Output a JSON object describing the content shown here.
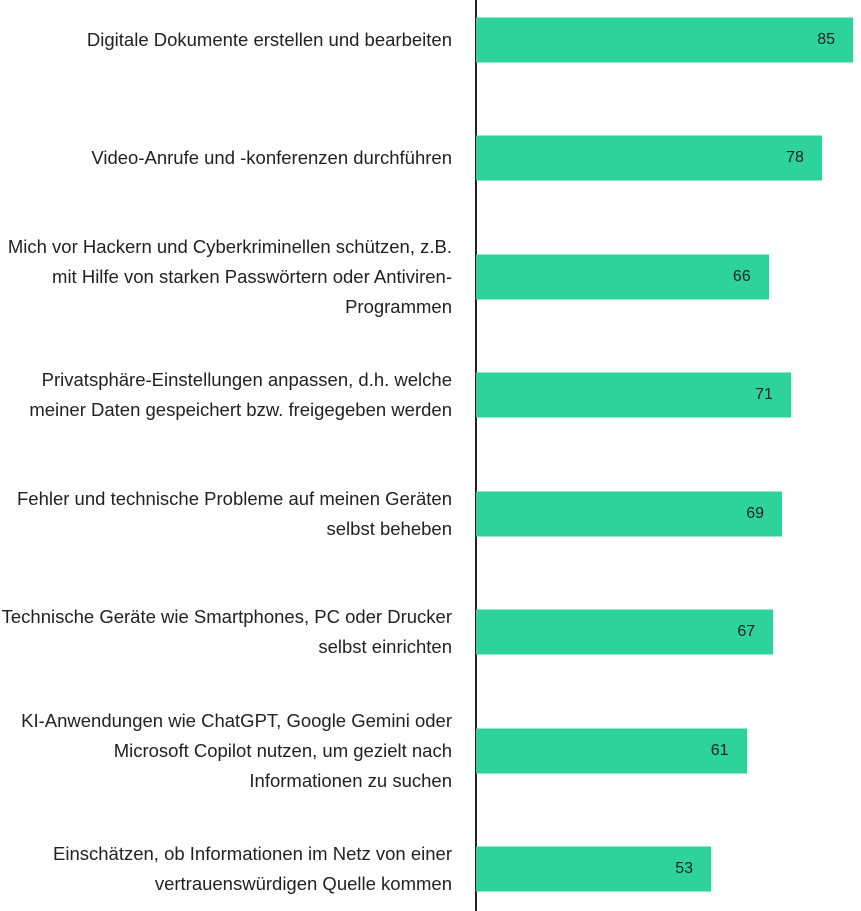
{
  "chart_data": {
    "type": "bar",
    "orientation": "horizontal",
    "categories": [
      "Digitale Dokumente erstellen und bearbeiten",
      "Video-Anrufe und -konferenzen durchführen",
      "Mich vor Hackern und Cyberkriminellen schützen, z.B. mit Hilfe von starken Passwörtern oder Antiviren-Programmen",
      "Privatsphäre-Einstellungen anpassen, d.h. welche meiner Daten gespeichert bzw. freigegeben werden",
      "Fehler und technische Probleme auf meinen Geräten selbst beheben",
      "Technische Geräte wie Smartphones, PC oder Drucker selbst einrichten",
      "KI-Anwendungen wie ChatGPT, Google Gemini oder Microsoft Copilot nutzen, um gezielt nach Informationen zu suchen",
      "Einschätzen, ob Informationen im Netz von einer vertrauenswürdigen Quelle kommen"
    ],
    "values": [
      85,
      78,
      66,
      71,
      69,
      67,
      61,
      53
    ],
    "color": "#2dd39a",
    "xlim": [
      0,
      85
    ]
  }
}
